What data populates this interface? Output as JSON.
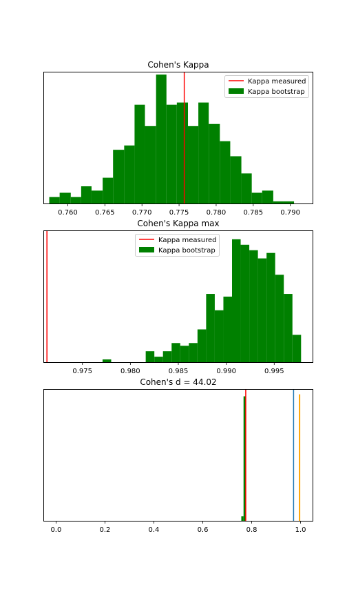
{
  "chart_data": [
    {
      "type": "bar",
      "title": "Cohen's Kappa",
      "xlabel": "",
      "ylabel": "",
      "xlim": [
        0.7568,
        0.793
      ],
      "ylim": [
        0,
        61
      ],
      "xticks": [
        0.76,
        0.765,
        0.77,
        0.775,
        0.78,
        0.785,
        0.79
      ],
      "xtick_labels": [
        "0.760",
        "0.765",
        "0.770",
        "0.775",
        "0.780",
        "0.785",
        "0.790"
      ],
      "yticks_visible": false,
      "legend": {
        "position": "upper right",
        "entries": [
          "Kappa measured",
          "Kappa bootstrap"
        ]
      },
      "vlines": [
        {
          "name": "Kappa measured",
          "x": 0.7757,
          "color": "#ff0000"
        }
      ],
      "series": [
        {
          "name": "Kappa bootstrap",
          "color": "#008000",
          "bin_edges": [
            0.7575,
            0.7589,
            0.7604,
            0.7618,
            0.7632,
            0.7647,
            0.7661,
            0.7676,
            0.769,
            0.7704,
            0.7719,
            0.7733,
            0.7747,
            0.7762,
            0.7776,
            0.779,
            0.7805,
            0.7819,
            0.7834,
            0.7848,
            0.7862,
            0.7877,
            0.7891,
            0.7905,
            0.792
          ],
          "counts": [
            3,
            5,
            3,
            8,
            6,
            12,
            25,
            27,
            46,
            36,
            60,
            46,
            47,
            36,
            47,
            37,
            29,
            22,
            14,
            5,
            6,
            1,
            1,
            0
          ]
        }
      ]
    },
    {
      "type": "bar",
      "title": "Cohen's Kappa max",
      "xlabel": "",
      "ylabel": "",
      "xlim": [
        0.971,
        0.999
      ],
      "ylim": [
        0,
        48
      ],
      "xticks": [
        0.975,
        0.98,
        0.985,
        0.99,
        0.995
      ],
      "xtick_labels": [
        "0.975",
        "0.980",
        "0.985",
        "0.990",
        "0.995"
      ],
      "yticks_visible": false,
      "legend": {
        "position": "upper center",
        "entries": [
          "Kappa measured",
          "Kappa bootstrap"
        ]
      },
      "vlines": [
        {
          "name": "Kappa measured",
          "x": 0.9713,
          "color": "#ff0000"
        }
      ],
      "series": [
        {
          "name": "Kappa bootstrap",
          "color": "#008000",
          "bin_edges": [
            0.9762,
            0.9771,
            0.978,
            0.9789,
            0.9798,
            0.9807,
            0.9816,
            0.9825,
            0.9834,
            0.9843,
            0.9852,
            0.9861,
            0.987,
            0.9879,
            0.9888,
            0.9897,
            0.9906,
            0.9915,
            0.9924,
            0.9933,
            0.9942,
            0.9951,
            0.996,
            0.9969,
            0.9978
          ],
          "counts": [
            0,
            1,
            0,
            0,
            0,
            0,
            4,
            2,
            4,
            7,
            6,
            7,
            12,
            25,
            19,
            24,
            45,
            43,
            41,
            38,
            40,
            32,
            25,
            10,
            3
          ]
        }
      ]
    },
    {
      "type": "bar",
      "title": "Cohen's d = 44.02",
      "xlabel": "",
      "ylabel": "",
      "xlim": [
        -0.049,
        1.049
      ],
      "ylim": [
        0,
        200
      ],
      "xticks": [
        0.0,
        0.2,
        0.4,
        0.6,
        0.8,
        1.0
      ],
      "xtick_labels": [
        "0.0",
        "0.2",
        "0.4",
        "0.6",
        "0.8",
        "1.0"
      ],
      "yticks_visible": false,
      "vlines": [
        {
          "x": 0.7757,
          "color": "#ff0000"
        },
        {
          "x": 0.9713,
          "color": "#1f77b4"
        }
      ],
      "series": [
        {
          "name": "",
          "color": "#008000",
          "bin_edges": [
            0.7575,
            0.7667,
            0.7759,
            0.7851,
            0.7943
          ],
          "counts": [
            7,
            190,
            0,
            0
          ]
        },
        {
          "name": "",
          "color": "#ffa500",
          "bin_edges": [
            0.9762,
            0.9818,
            0.9874,
            0.993,
            0.9986
          ],
          "counts": [
            0,
            0,
            0,
            193
          ]
        }
      ]
    }
  ]
}
